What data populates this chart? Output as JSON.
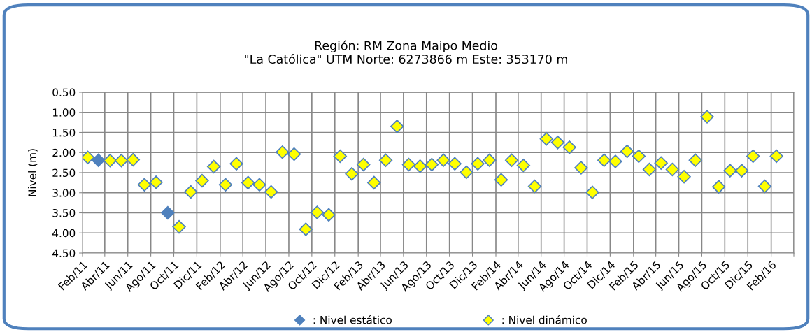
{
  "chart_data": {
    "type": "scatter",
    "title": "Región: RM Zona Maipo Medio\n\"La Católica\" UTM Norte: 6273866 m Este: 353170 m",
    "ylabel": "Nivel (m)",
    "x": [
      "2011-02-15",
      "2011-03-15",
      "2011-04-15",
      "2011-05-15",
      "2011-06-15",
      "2011-07-15",
      "2011-08-15",
      "2011-09-15",
      "2011-10-15",
      "2011-11-15",
      "2011-12-15",
      "2012-01-15",
      "2012-02-15",
      "2012-03-15",
      "2012-04-15",
      "2012-05-15",
      "2012-06-15",
      "2012-07-15",
      "2012-08-15",
      "2012-09-15",
      "2012-10-15",
      "2012-11-15",
      "2012-12-15",
      "2013-01-15",
      "2013-02-15",
      "2013-03-15",
      "2013-04-15",
      "2013-05-15",
      "2013-06-15",
      "2013-07-15",
      "2013-08-15",
      "2013-09-15",
      "2013-10-15",
      "2013-11-15",
      "2013-12-15",
      "2014-01-15",
      "2014-02-15",
      "2014-03-15",
      "2014-04-15",
      "2014-05-15",
      "2014-06-15",
      "2014-07-15",
      "2014-08-15",
      "2014-09-15",
      "2014-10-15",
      "2014-11-15",
      "2014-12-15",
      "2015-01-15",
      "2015-02-15",
      "2015-03-15",
      "2015-04-15",
      "2015-05-15",
      "2015-06-15",
      "2015-07-15",
      "2015-08-15",
      "2015-09-15",
      "2015-10-15",
      "2015-11-15",
      "2015-12-15",
      "2016-01-15",
      "2016-02-15"
    ],
    "series": [
      {
        "name": ": Nivel estático",
        "color": "#4f81bd",
        "values": [
          null,
          2.19,
          null,
          null,
          null,
          null,
          null,
          3.5,
          null,
          null,
          null,
          null,
          null,
          null,
          null,
          null,
          null,
          null,
          null,
          null,
          null,
          null,
          null,
          null,
          null,
          null,
          null,
          null,
          null,
          null,
          null,
          null,
          null,
          null,
          null,
          null,
          null,
          null,
          null,
          null,
          null,
          null,
          null,
          null,
          null,
          null,
          null,
          null,
          null,
          null,
          null,
          null,
          null,
          null,
          null,
          null,
          null,
          null,
          null,
          null,
          null
        ]
      },
      {
        "name": ": Nivel dinámico",
        "color": "#ffff00",
        "values": [
          2.12,
          null,
          2.2,
          2.2,
          2.18,
          2.8,
          2.74,
          null,
          3.85,
          2.98,
          2.7,
          2.35,
          2.8,
          2.28,
          2.75,
          2.8,
          2.98,
          1.99,
          2.04,
          3.91,
          3.49,
          3.55,
          2.09,
          2.53,
          2.3,
          2.75,
          2.19,
          1.35,
          2.3,
          2.34,
          2.3,
          2.19,
          2.28,
          2.49,
          2.28,
          2.19,
          2.68,
          2.19,
          2.32,
          2.84,
          1.66,
          1.75,
          1.87,
          2.38,
          2.99,
          2.19,
          2.22,
          1.97,
          2.09,
          2.42,
          2.26,
          2.42,
          2.6,
          2.19,
          1.11,
          2.85,
          2.45,
          2.45,
          2.09,
          2.84,
          2.09
        ]
      }
    ],
    "ylim": [
      4.5,
      0.5
    ],
    "yticks": [
      {
        "value": 0.5,
        "label": "0.50"
      },
      {
        "value": 1.0,
        "label": "1.00"
      },
      {
        "value": 1.5,
        "label": "1.50"
      },
      {
        "value": 2.0,
        "label": "2.00"
      },
      {
        "value": 2.5,
        "label": "2.50"
      },
      {
        "value": 3.0,
        "label": "3.00"
      },
      {
        "value": 3.5,
        "label": "3.50"
      },
      {
        "value": 4.0,
        "label": "4.00"
      },
      {
        "value": 4.5,
        "label": "4.50"
      }
    ],
    "xlim": [
      "2011-02-01",
      "2016-04-01"
    ],
    "xticks": [
      {
        "value": "2011-02-01",
        "label": "Feb/11"
      },
      {
        "value": "2011-04-01",
        "label": "Abr/11"
      },
      {
        "value": "2011-06-01",
        "label": "Jun/11"
      },
      {
        "value": "2011-08-01",
        "label": "Ago/11"
      },
      {
        "value": "2011-10-01",
        "label": "Oct/11"
      },
      {
        "value": "2011-12-01",
        "label": "Dic/11"
      },
      {
        "value": "2012-02-01",
        "label": "Feb/12"
      },
      {
        "value": "2012-04-01",
        "label": "Abr/12"
      },
      {
        "value": "2012-06-01",
        "label": "Jun/12"
      },
      {
        "value": "2012-08-01",
        "label": "Ago/12"
      },
      {
        "value": "2012-10-01",
        "label": "Oct/12"
      },
      {
        "value": "2012-12-01",
        "label": "Dic/12"
      },
      {
        "value": "2013-02-01",
        "label": "Feb/13"
      },
      {
        "value": "2013-04-01",
        "label": "Abr/13"
      },
      {
        "value": "2013-06-01",
        "label": "Jun/13"
      },
      {
        "value": "2013-08-01",
        "label": "Ago/13"
      },
      {
        "value": "2013-10-01",
        "label": "Oct/13"
      },
      {
        "value": "2013-12-01",
        "label": "Dic/13"
      },
      {
        "value": "2014-02-01",
        "label": "Feb/14"
      },
      {
        "value": "2014-04-01",
        "label": "Abr/14"
      },
      {
        "value": "2014-06-01",
        "label": "Jun/14"
      },
      {
        "value": "2014-08-01",
        "label": "Ago/14"
      },
      {
        "value": "2014-10-01",
        "label": "Oct/14"
      },
      {
        "value": "2014-12-01",
        "label": "Dic/14"
      },
      {
        "value": "2015-02-01",
        "label": "Feb/15"
      },
      {
        "value": "2015-04-01",
        "label": "Abr/15"
      },
      {
        "value": "2015-06-01",
        "label": "Jun/15"
      },
      {
        "value": "2015-08-01",
        "label": "Ago/15"
      },
      {
        "value": "2015-10-01",
        "label": "Oct/15"
      },
      {
        "value": "2015-12-01",
        "label": "Dic/15"
      },
      {
        "value": "2016-02-01",
        "label": "Feb/16"
      },
      {
        "value": "2016-04-01",
        "label": null
      }
    ],
    "grid": true,
    "legend": "bottom",
    "marker": "diamond"
  }
}
